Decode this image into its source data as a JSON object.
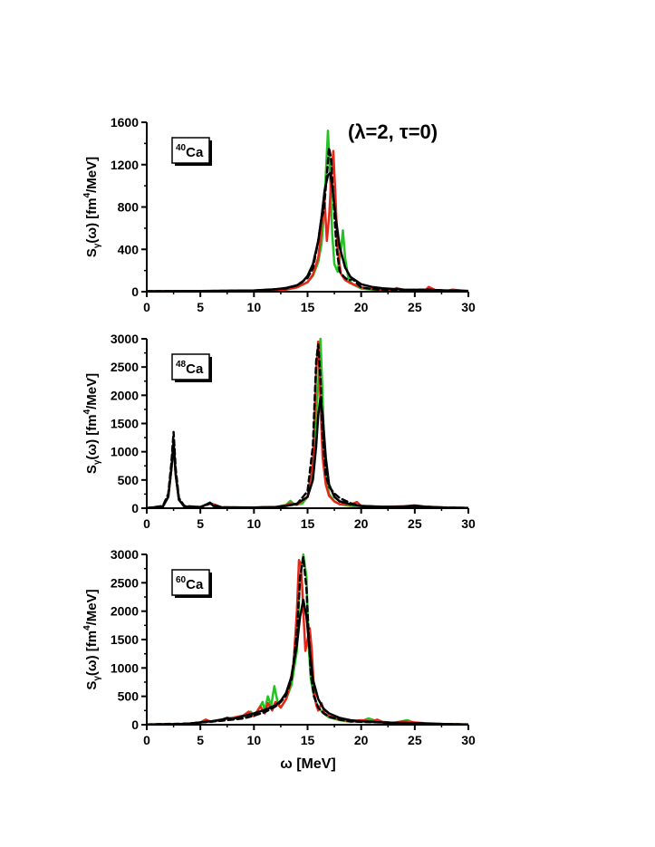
{
  "figure": {
    "params_label": "(λ=2, τ=0)",
    "xlabel": "ω [MeV]"
  },
  "chart_data": [
    {
      "type": "line",
      "nucleus_mass": "40",
      "nucleus_symbol": "Ca",
      "ylabel": "Sγ(ω) [fm⁴/MeV]",
      "ylabel_parts": {
        "pre": "S",
        "sub": "γ",
        "mid": "(ω) [fm",
        "sup": "4",
        "post": "/MeV]"
      },
      "xlim": [
        0,
        30
      ],
      "ylim": [
        0,
        1600
      ],
      "xticks": [
        0,
        5,
        10,
        15,
        20,
        25,
        30
      ],
      "yticks": [
        0,
        400,
        800,
        1200,
        1600
      ],
      "series": [
        {
          "color": "#22c322",
          "dash": false,
          "width": 2.5,
          "x": [
            0,
            5,
            10,
            13,
            14,
            15,
            15.5,
            16,
            16.3,
            16.5,
            16.7,
            16.9,
            17.1,
            17.3,
            17.5,
            17.8,
            18.1,
            18.3,
            18.5,
            18.8,
            19.2,
            20,
            21,
            22,
            23,
            23.3,
            24,
            25,
            26,
            26.3,
            27,
            28,
            30
          ],
          "y": [
            3,
            5,
            8,
            20,
            40,
            90,
            150,
            280,
            450,
            700,
            1100,
            1520,
            1100,
            550,
            260,
            190,
            380,
            580,
            320,
            130,
            70,
            30,
            20,
            14,
            12,
            30,
            12,
            10,
            14,
            30,
            10,
            6,
            4
          ]
        },
        {
          "color": "#e8261a",
          "dash": false,
          "width": 2.5,
          "x": [
            0,
            5,
            10,
            13,
            14,
            15,
            15.5,
            16,
            16.2,
            16.5,
            16.6,
            16.8,
            17.0,
            17.2,
            17.4,
            17.6,
            17.8,
            18.1,
            18.5,
            19,
            20,
            21,
            22,
            23,
            23.3,
            24,
            25,
            26,
            26.3,
            27,
            28,
            28.5,
            30
          ],
          "y": [
            3,
            5,
            8,
            20,
            40,
            90,
            160,
            320,
            500,
            820,
            850,
            480,
            700,
            1050,
            1330,
            900,
            420,
            170,
            110,
            80,
            40,
            25,
            18,
            15,
            35,
            15,
            12,
            15,
            45,
            12,
            8,
            20,
            4
          ]
        },
        {
          "color": "#000000",
          "dash": true,
          "width": 2.5,
          "x": [
            0,
            5,
            10,
            13,
            14,
            15,
            15.5,
            16,
            16.3,
            16.5,
            16.8,
            17,
            17.2,
            17.4,
            17.7,
            18,
            18.4,
            18.8,
            19.2,
            19.6,
            20,
            21,
            22,
            24,
            26,
            28,
            30
          ],
          "y": [
            4,
            6,
            10,
            30,
            60,
            130,
            220,
            480,
            700,
            760,
            1100,
            1360,
            1250,
            900,
            420,
            190,
            140,
            105,
            120,
            80,
            40,
            25,
            18,
            14,
            20,
            10,
            5
          ]
        },
        {
          "color": "#000000",
          "dash": false,
          "width": 2.5,
          "x": [
            0,
            5,
            10,
            12,
            13,
            14,
            14.5,
            15,
            15.5,
            16,
            16.3,
            16.6,
            16.9,
            17.1,
            17.3,
            17.6,
            18,
            18.5,
            19,
            20,
            21,
            22,
            24,
            26,
            28,
            30
          ],
          "y": [
            4,
            6,
            12,
            22,
            35,
            60,
            90,
            150,
            260,
            480,
            700,
            960,
            1100,
            1120,
            1000,
            720,
            420,
            230,
            140,
            70,
            45,
            32,
            20,
            18,
            12,
            8
          ]
        }
      ]
    },
    {
      "type": "line",
      "nucleus_mass": "48",
      "nucleus_symbol": "Ca",
      "ylabel": "Sγ(ω) [fm⁴/MeV]",
      "ylabel_parts": {
        "pre": "S",
        "sub": "γ",
        "mid": "(ω) [fm",
        "sup": "4",
        "post": "/MeV]"
      },
      "xlim": [
        0,
        30
      ],
      "ylim": [
        0,
        3000
      ],
      "xticks": [
        0,
        5,
        10,
        15,
        20,
        25,
        30
      ],
      "yticks": [
        0,
        500,
        1000,
        1500,
        2000,
        2500,
        3000
      ],
      "series": [
        {
          "color": "#22c322",
          "dash": false,
          "width": 2.5,
          "x": [
            0,
            1.5,
            2,
            2.3,
            2.5,
            2.7,
            3,
            3.5,
            5,
            5.9,
            7,
            10,
            12,
            13,
            13.4,
            13.8,
            14.5,
            15,
            15.5,
            16,
            16.2,
            16.4,
            16.6,
            17,
            17.5,
            18,
            19,
            20,
            22,
            24,
            25,
            26,
            28,
            30
          ],
          "y": [
            2,
            30,
            200,
            700,
            1200,
            600,
            150,
            30,
            20,
            90,
            15,
            12,
            20,
            60,
            130,
            60,
            80,
            200,
            700,
            2200,
            3000,
            2000,
            700,
            250,
            120,
            70,
            40,
            25,
            20,
            30,
            40,
            25,
            10,
            5
          ]
        },
        {
          "color": "#e8261a",
          "dash": false,
          "width": 2.5,
          "x": [
            0,
            1.5,
            2,
            2.3,
            2.5,
            2.7,
            3,
            3.5,
            5,
            5.9,
            7,
            10,
            12,
            13,
            13.4,
            14,
            15,
            15.5,
            15.8,
            16.0,
            16.2,
            16.4,
            16.7,
            17,
            17.5,
            18,
            19,
            19.6,
            20,
            22,
            24,
            25,
            26,
            28,
            30
          ],
          "y": [
            2,
            30,
            200,
            700,
            1150,
            600,
            150,
            30,
            20,
            90,
            15,
            12,
            20,
            50,
            90,
            60,
            200,
            800,
            2400,
            2950,
            1900,
            900,
            420,
            220,
            120,
            70,
            60,
            110,
            40,
            20,
            35,
            50,
            25,
            10,
            5
          ]
        },
        {
          "color": "#000000",
          "dash": true,
          "width": 2.5,
          "x": [
            0,
            1.5,
            2,
            2.3,
            2.5,
            2.7,
            3,
            3.5,
            5,
            5.9,
            7,
            10,
            12,
            14,
            15,
            15.5,
            15.8,
            16.0,
            16.2,
            16.4,
            16.7,
            17,
            17.5,
            18,
            19,
            20,
            22,
            24,
            26,
            28,
            30
          ],
          "y": [
            2,
            40,
            250,
            800,
            1350,
            700,
            180,
            40,
            20,
            80,
            15,
            12,
            20,
            70,
            300,
            1100,
            2600,
            2900,
            2300,
            1300,
            600,
            380,
            260,
            180,
            90,
            40,
            20,
            20,
            20,
            10,
            5
          ]
        },
        {
          "color": "#000000",
          "dash": false,
          "width": 2.5,
          "x": [
            0,
            1.5,
            2,
            2.3,
            2.5,
            2.7,
            3,
            3.5,
            5,
            5.6,
            5.9,
            6.2,
            7,
            10,
            12,
            13,
            14,
            15,
            15.5,
            15.8,
            16.0,
            16.2,
            16.4,
            16.7,
            17,
            17.5,
            18,
            19,
            20,
            22,
            24,
            25,
            26,
            28,
            30
          ],
          "y": [
            2,
            30,
            200,
            700,
            1150,
            600,
            150,
            30,
            20,
            70,
            100,
            40,
            15,
            12,
            20,
            40,
            80,
            200,
            500,
            1100,
            1650,
            1950,
            1650,
            900,
            420,
            200,
            120,
            70,
            40,
            25,
            25,
            45,
            25,
            10,
            5
          ]
        }
      ]
    },
    {
      "type": "line",
      "nucleus_mass": "60",
      "nucleus_symbol": "Ca",
      "ylabel": "Sγ(ω) [fm⁴/MeV]",
      "ylabel_parts": {
        "pre": "S",
        "sub": "γ",
        "mid": "(ω) [fm",
        "sup": "4",
        "post": "/MeV]"
      },
      "xlim": [
        0,
        30
      ],
      "ylim": [
        0,
        3000
      ],
      "xticks": [
        0,
        5,
        10,
        15,
        20,
        25,
        30
      ],
      "yticks": [
        0,
        500,
        1000,
        1500,
        2000,
        2500,
        3000
      ],
      "series": [
        {
          "color": "#22c322",
          "dash": false,
          "width": 2.5,
          "x": [
            0,
            3,
            4,
            5,
            5.5,
            6,
            7,
            8,
            9,
            9.7,
            10,
            10.5,
            10.8,
            11,
            11.3,
            11.6,
            11.9,
            12.2,
            12.5,
            13,
            13.5,
            14,
            14.3,
            14.6,
            14.9,
            15.1,
            15.3,
            15.6,
            16,
            16.5,
            17,
            18,
            19,
            20,
            20.7,
            21.5,
            22,
            23,
            24.3,
            25,
            26,
            28,
            30
          ],
          "y": [
            5,
            10,
            20,
            40,
            90,
            50,
            90,
            120,
            160,
            230,
            150,
            300,
            400,
            250,
            500,
            330,
            680,
            400,
            300,
            450,
            700,
            1300,
            2600,
            3000,
            2600,
            1400,
            800,
            500,
            300,
            200,
            130,
            80,
            50,
            60,
            110,
            60,
            40,
            30,
            80,
            30,
            20,
            10,
            5
          ]
        },
        {
          "color": "#e8261a",
          "dash": false,
          "width": 2.5,
          "x": [
            0,
            3,
            4,
            5,
            5.5,
            6,
            7,
            8,
            9,
            9.5,
            10,
            10.6,
            11,
            11.3,
            11.7,
            12,
            12.5,
            13,
            13.3,
            13.7,
            14,
            14.2,
            14.4,
            14.6,
            14.8,
            15,
            15.2,
            15.4,
            15.6,
            15.8,
            16,
            16.3,
            16.6,
            17,
            18,
            19,
            20,
            21,
            21.5,
            22,
            23,
            24,
            25,
            26,
            28,
            30
          ],
          "y": [
            5,
            10,
            20,
            40,
            90,
            50,
            90,
            120,
            160,
            230,
            150,
            320,
            200,
            380,
            250,
            400,
            300,
            450,
            650,
            1100,
            2000,
            2900,
            2800,
            2000,
            1300,
            1500,
            1700,
            1300,
            600,
            350,
            250,
            380,
            200,
            150,
            90,
            60,
            80,
            60,
            90,
            50,
            30,
            60,
            40,
            25,
            10,
            5
          ]
        },
        {
          "color": "#000000",
          "dash": true,
          "width": 2.5,
          "x": [
            0,
            4,
            5,
            7,
            9,
            10,
            11,
            12,
            12.5,
            13,
            13.5,
            14,
            14.3,
            14.6,
            14.9,
            15.1,
            15.3,
            15.6,
            16,
            16.5,
            17,
            18,
            19,
            20,
            22,
            24,
            26,
            28,
            30
          ],
          "y": [
            5,
            20,
            40,
            70,
            110,
            160,
            220,
            320,
            400,
            520,
            800,
            1600,
            2600,
            2950,
            2400,
            1600,
            900,
            500,
            300,
            200,
            140,
            90,
            60,
            50,
            40,
            30,
            20,
            10,
            5
          ]
        },
        {
          "color": "#000000",
          "dash": false,
          "width": 2.5,
          "x": [
            0,
            3,
            4,
            5,
            6,
            7,
            7.5,
            8,
            9,
            10,
            11,
            12,
            12.5,
            13,
            13.5,
            14,
            14.3,
            14.6,
            14.9,
            15.2,
            15.5,
            16,
            16.5,
            17,
            18,
            19,
            20,
            22,
            24,
            26,
            28,
            30
          ],
          "y": [
            5,
            10,
            20,
            40,
            60,
            90,
            120,
            100,
            150,
            200,
            260,
            340,
            420,
            560,
            850,
            1400,
            1900,
            2200,
            1900,
            1300,
            800,
            450,
            280,
            200,
            120,
            80,
            60,
            40,
            30,
            20,
            10,
            5
          ]
        }
      ]
    }
  ]
}
